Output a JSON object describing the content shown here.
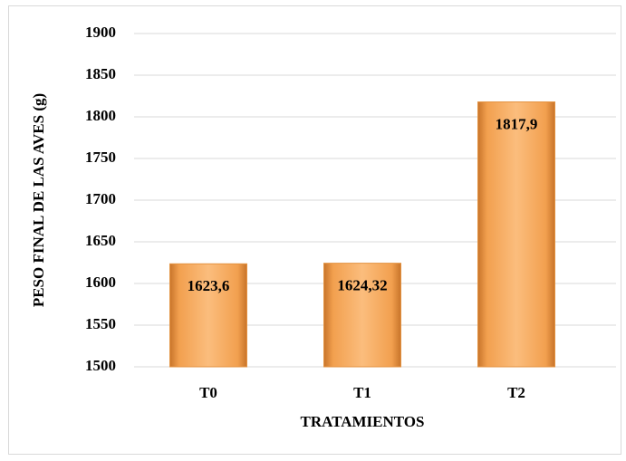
{
  "chart_data": {
    "type": "bar",
    "x_label": "TRATAMIENTOS",
    "y_label": "PESO FINAL DE LAS AVES (g)",
    "categories": [
      "T0",
      "T1",
      "T2"
    ],
    "values": [
      1623.6,
      1624.32,
      1817.9
    ],
    "value_labels": [
      "1623,6",
      "1624,32",
      "1817,9"
    ],
    "color": "#f4a453",
    "ylim": [
      1500,
      1900
    ],
    "yticks": [
      1500,
      1550,
      1600,
      1650,
      1700,
      1750,
      1800,
      1850,
      1900
    ],
    "grid": true
  }
}
